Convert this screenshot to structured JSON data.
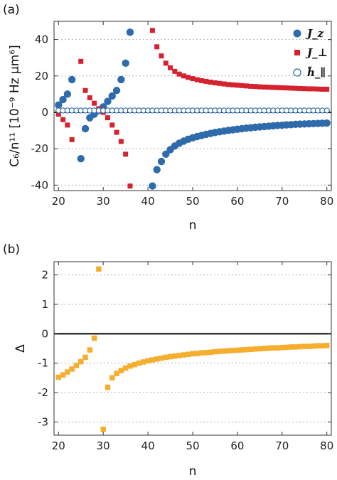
{
  "panel_labels": [
    "(a)",
    "(b)"
  ],
  "colors": {
    "Jz": "#2e6bab",
    "Jperp": "#d5222f",
    "h_par_edge": "#2e6bab",
    "delta": "#f5ae2e"
  },
  "chart_data": [
    {
      "type": "scatter",
      "panel": "(a)",
      "xlabel": "n",
      "ylabel": "C₆/n¹¹ [10⁻⁹ Hz μm⁶]",
      "xlim": [
        19,
        81
      ],
      "ylim": [
        -43,
        50
      ],
      "xticks": [
        20,
        30,
        40,
        50,
        60,
        70,
        80
      ],
      "yticks": [
        -40,
        -20,
        0,
        20,
        40
      ],
      "grid": "horizontal dotted",
      "legend_position": "top-right",
      "legend": [
        "J_z",
        "J_⊥",
        "h̃_∥"
      ],
      "series": [
        {
          "name": "J_z",
          "marker": "circle",
          "x": [
            20,
            21,
            22,
            23,
            25,
            26,
            27,
            28,
            29,
            30,
            31,
            32,
            33,
            34,
            35,
            36,
            41,
            42,
            43,
            44,
            45,
            46,
            47,
            48,
            49,
            50,
            51,
            52,
            53,
            54,
            55,
            56,
            57,
            58,
            59,
            60,
            61,
            62,
            63,
            64,
            65,
            66,
            67,
            68,
            69,
            70,
            71,
            72,
            73,
            74,
            75,
            76,
            77,
            78,
            79,
            80
          ],
          "y": [
            4,
            7,
            10,
            18,
            -25.5,
            -9,
            -3,
            -1,
            1,
            3,
            6,
            9,
            12,
            18,
            27,
            44,
            -40.5,
            -31.5,
            -27,
            -23,
            -20.5,
            -18.5,
            -17,
            -15.8,
            -14.8,
            -14,
            -13.3,
            -12.7,
            -12.1,
            -11.6,
            -11.1,
            -10.7,
            -10.3,
            -9.9,
            -9.6,
            -9.3,
            -9,
            -8.7,
            -8.5,
            -8.2,
            -8,
            -7.8,
            -7.6,
            -7.4,
            -7.2,
            -7.1,
            -6.9,
            -6.8,
            -6.6,
            -6.5,
            -6.4,
            -6.3,
            -6.2,
            -6.1,
            -6,
            -5.9
          ]
        },
        {
          "name": "J_⊥",
          "marker": "square",
          "x": [
            20,
            21,
            22,
            23,
            25,
            26,
            27,
            28,
            29,
            30,
            31,
            32,
            33,
            34,
            35,
            36,
            41,
            42,
            43,
            44,
            45,
            46,
            47,
            48,
            49,
            50,
            51,
            52,
            53,
            54,
            55,
            56,
            57,
            58,
            59,
            60,
            61,
            62,
            63,
            64,
            65,
            66,
            67,
            68,
            69,
            70,
            71,
            72,
            73,
            74,
            75,
            76,
            77,
            78,
            79,
            80
          ],
          "y": [
            -1,
            -4,
            -7,
            -15,
            28,
            12,
            8,
            5,
            2,
            0,
            -3,
            -7,
            -11,
            -16,
            -23,
            -40.5,
            45,
            36,
            31,
            27,
            24.5,
            22.5,
            21,
            20,
            19.2,
            18.5,
            17.9,
            17.4,
            17,
            16.6,
            16.2,
            15.9,
            15.6,
            15.3,
            15.1,
            14.9,
            14.7,
            14.5,
            14.3,
            14.2,
            14,
            13.9,
            13.8,
            13.7,
            13.6,
            13.5,
            13.4,
            13.3,
            13.2,
            13.1,
            13,
            12.9,
            12.9,
            12.8,
            12.7,
            12.7
          ]
        },
        {
          "name": "h̃_∥",
          "marker": "open-circle",
          "x": [
            20,
            21,
            22,
            23,
            24,
            25,
            26,
            27,
            28,
            29,
            30,
            31,
            32,
            33,
            34,
            35,
            36,
            37,
            38,
            39,
            40,
            41,
            42,
            43,
            44,
            45,
            46,
            47,
            48,
            49,
            50,
            51,
            52,
            53,
            54,
            55,
            56,
            57,
            58,
            59,
            60,
            61,
            62,
            63,
            64,
            65,
            66,
            67,
            68,
            69,
            70,
            71,
            72,
            73,
            74,
            75,
            76,
            77,
            78,
            79,
            80
          ],
          "y": [
            1,
            1,
            1,
            1,
            1,
            1,
            1,
            1,
            1,
            1,
            1,
            1,
            1,
            1,
            1,
            1,
            1,
            1,
            1,
            1,
            1,
            1,
            1,
            1,
            1,
            1,
            1,
            1,
            1,
            1,
            1,
            1,
            1,
            1,
            1,
            1,
            1,
            1,
            1,
            1,
            1,
            1,
            1,
            1,
            1,
            1,
            1,
            1,
            1,
            1,
            1,
            1,
            1,
            1,
            1,
            1,
            1,
            1,
            1,
            1,
            1
          ]
        }
      ]
    },
    {
      "type": "scatter",
      "panel": "(b)",
      "xlabel": "n",
      "ylabel": "Δ",
      "xlim": [
        19,
        81
      ],
      "ylim": [
        -3.45,
        2.45
      ],
      "xticks": [
        20,
        30,
        40,
        50,
        60,
        70,
        80
      ],
      "yticks": [
        -3,
        -2,
        -1,
        0,
        1,
        2
      ],
      "grid": "horizontal dotted",
      "series": [
        {
          "marker": "square",
          "x": [
            20,
            21,
            22,
            23,
            24,
            25,
            26,
            27,
            28,
            29,
            30,
            31,
            32,
            33,
            34,
            35,
            36,
            37,
            38,
            39,
            40,
            41,
            42,
            43,
            44,
            45,
            46,
            47,
            48,
            49,
            50,
            51,
            52,
            53,
            54,
            55,
            56,
            57,
            58,
            59,
            60,
            61,
            62,
            63,
            64,
            65,
            66,
            67,
            68,
            69,
            70,
            71,
            72,
            73,
            74,
            75,
            76,
            77,
            78,
            79,
            80
          ],
          "y": [
            -1.48,
            -1.4,
            -1.3,
            -1.2,
            -1.08,
            -0.95,
            -0.8,
            -0.55,
            -0.15,
            2.2,
            -3.25,
            -1.82,
            -1.5,
            -1.35,
            -1.25,
            -1.17,
            -1.1,
            -1.05,
            -1.0,
            -0.96,
            -0.92,
            -0.89,
            -0.86,
            -0.83,
            -0.8,
            -0.78,
            -0.76,
            -0.74,
            -0.72,
            -0.7,
            -0.68,
            -0.67,
            -0.65,
            -0.64,
            -0.63,
            -0.61,
            -0.6,
            -0.59,
            -0.58,
            -0.57,
            -0.56,
            -0.55,
            -0.54,
            -0.53,
            -0.52,
            -0.51,
            -0.5,
            -0.49,
            -0.48,
            -0.48,
            -0.47,
            -0.46,
            -0.45,
            -0.45,
            -0.44,
            -0.43,
            -0.43,
            -0.42,
            -0.41,
            -0.41,
            -0.4
          ]
        }
      ]
    }
  ]
}
